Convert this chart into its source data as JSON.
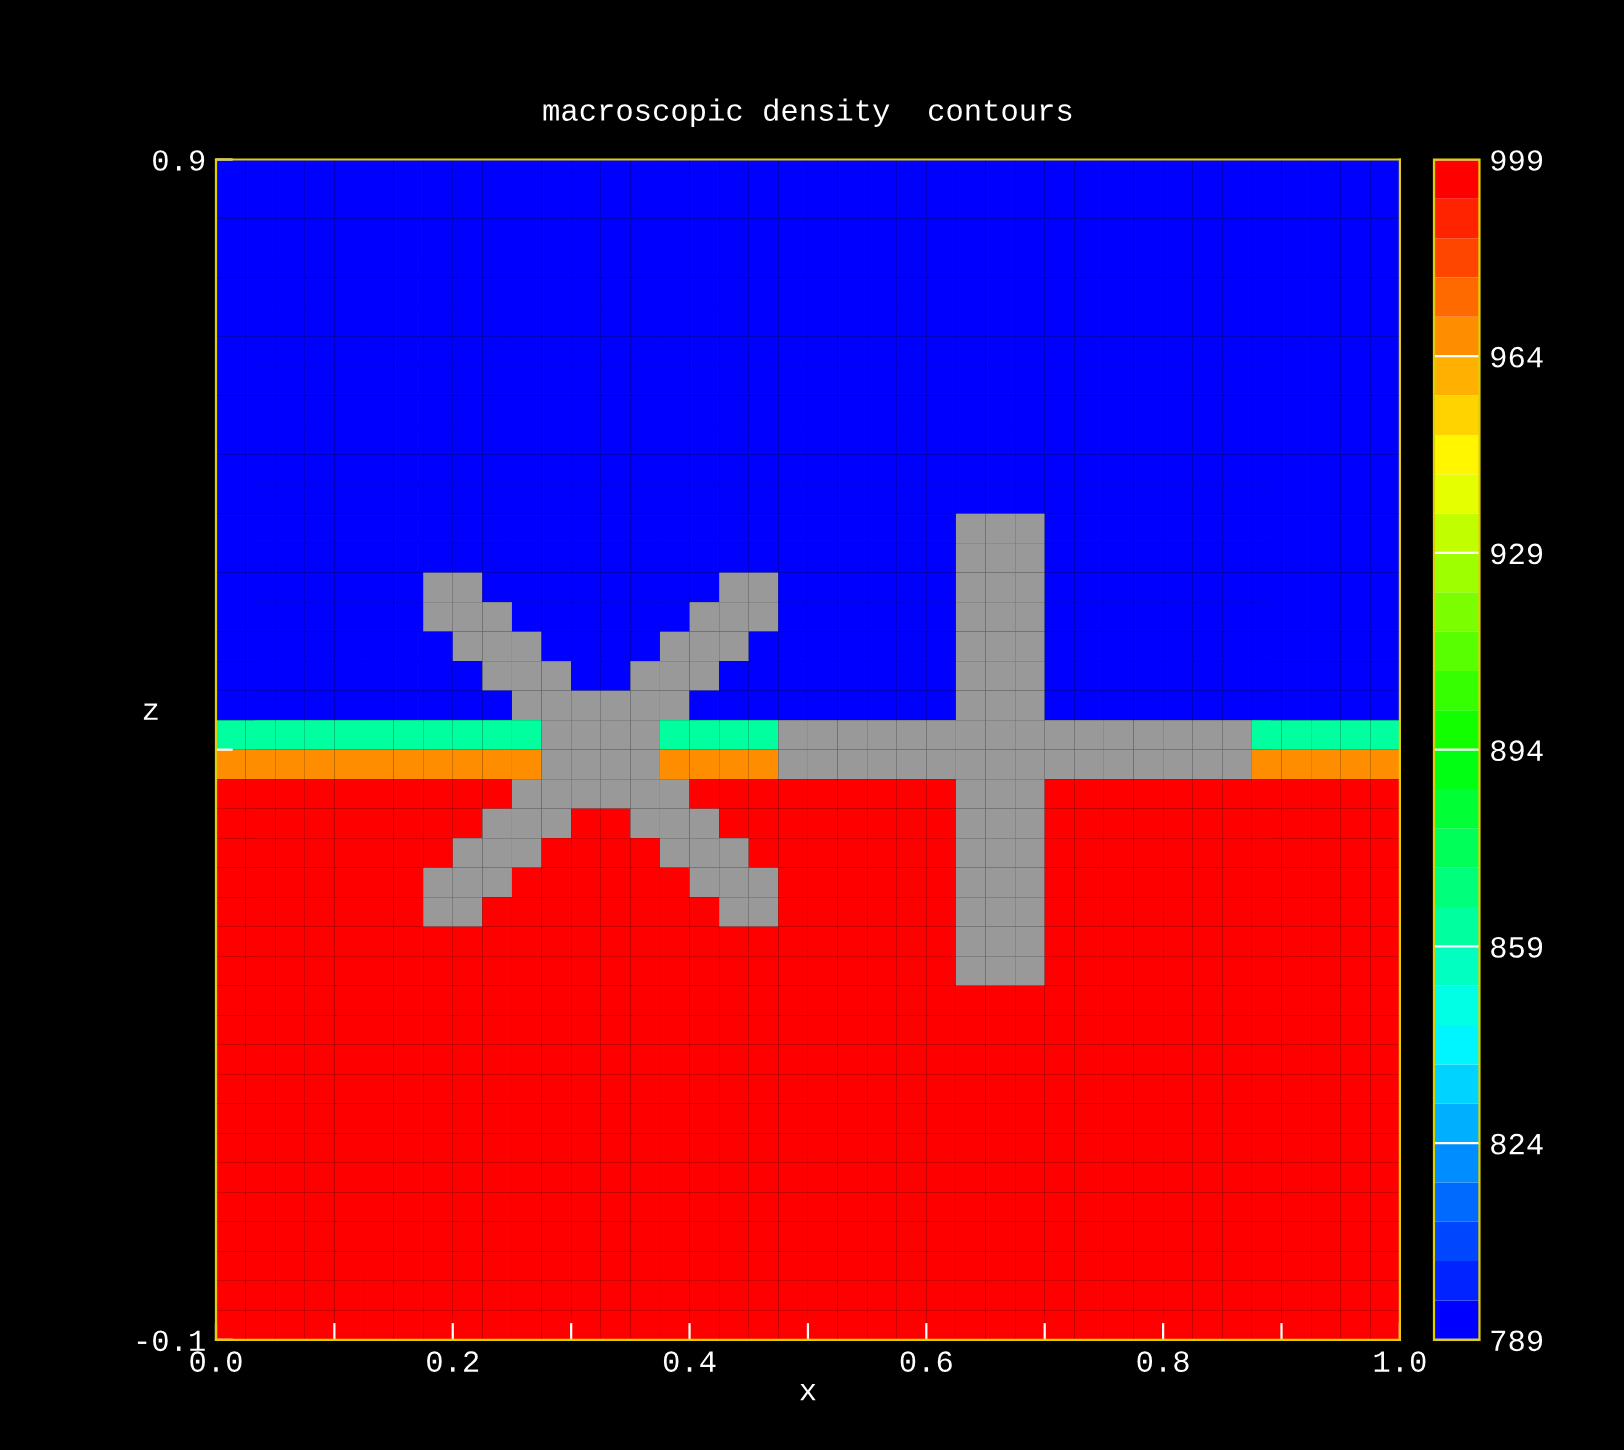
{
  "chart_data": {
    "type": "heatmap",
    "title": "macroscopic density  contours",
    "xlabel": "x",
    "ylabel": "z",
    "xlim": [
      0,
      1
    ],
    "ylim": [
      -0.1,
      0.9
    ],
    "xticks": [
      {
        "value": 0,
        "label": "0.0"
      },
      {
        "value": 0.1,
        "label": null
      },
      0.2,
      {
        "value": 0.3,
        "label": null
      },
      0.4,
      {
        "value": 0.5,
        "label": null
      },
      0.6,
      {
        "value": 0.7,
        "label": null
      },
      0.8,
      {
        "value": 0.9,
        "label": null
      },
      {
        "value": 1.0,
        "label": "1.0"
      }
    ],
    "yticks": [
      -0.1,
      {
        "value": 0.4,
        "label": null
      },
      0.9
    ],
    "clim": [
      789,
      999
    ],
    "cticks": [
      789,
      824,
      859,
      894,
      929,
      964,
      999
    ],
    "cells": [
      [
        789,
        789,
        789,
        789,
        789,
        789,
        789,
        789,
        789,
        789,
        789,
        789,
        789,
        789,
        789,
        789,
        789,
        789,
        789,
        789,
        789,
        789,
        789,
        789,
        789,
        789,
        789,
        789,
        789,
        789,
        789,
        789,
        789,
        789,
        789,
        789,
        789,
        789,
        789,
        789
      ],
      [
        789,
        789,
        789,
        789,
        789,
        789,
        789,
        789,
        789,
        789,
        789,
        789,
        789,
        789,
        789,
        789,
        789,
        789,
        789,
        789,
        789,
        789,
        789,
        789,
        789,
        789,
        789,
        789,
        789,
        789,
        789,
        789,
        789,
        789,
        789,
        789,
        789,
        789,
        789,
        789
      ],
      [
        789,
        789,
        789,
        789,
        789,
        789,
        789,
        789,
        789,
        789,
        789,
        789,
        789,
        789,
        789,
        789,
        789,
        789,
        789,
        789,
        789,
        789,
        789,
        789,
        789,
        789,
        789,
        789,
        789,
        789,
        789,
        789,
        789,
        789,
        789,
        789,
        789,
        789,
        789,
        789
      ],
      [
        789,
        789,
        789,
        789,
        789,
        789,
        789,
        789,
        789,
        789,
        789,
        789,
        789,
        789,
        789,
        789,
        789,
        789,
        789,
        789,
        789,
        789,
        789,
        789,
        789,
        789,
        789,
        789,
        789,
        789,
        789,
        789,
        789,
        789,
        789,
        789,
        789,
        789,
        789,
        789
      ],
      [
        789,
        789,
        789,
        789,
        789,
        789,
        789,
        789,
        789,
        789,
        789,
        789,
        789,
        789,
        789,
        789,
        789,
        789,
        789,
        789,
        789,
        789,
        789,
        789,
        789,
        789,
        789,
        789,
        789,
        789,
        789,
        789,
        789,
        789,
        789,
        789,
        789,
        789,
        789,
        789
      ],
      [
        789,
        789,
        789,
        789,
        789,
        789,
        789,
        789,
        789,
        789,
        789,
        789,
        789,
        789,
        789,
        789,
        789,
        789,
        789,
        789,
        789,
        789,
        789,
        789,
        789,
        789,
        789,
        789,
        789,
        789,
        789,
        789,
        789,
        789,
        789,
        789,
        789,
        789,
        789,
        789
      ],
      [
        789,
        789,
        789,
        789,
        789,
        789,
        789,
        789,
        789,
        789,
        789,
        789,
        789,
        789,
        789,
        789,
        789,
        789,
        789,
        789,
        789,
        789,
        789,
        789,
        789,
        789,
        789,
        789,
        789,
        789,
        789,
        789,
        789,
        789,
        789,
        789,
        789,
        789,
        789,
        789
      ],
      [
        789,
        789,
        789,
        789,
        789,
        789,
        789,
        789,
        789,
        789,
        789,
        789,
        789,
        789,
        789,
        789,
        789,
        789,
        789,
        789,
        789,
        789,
        789,
        789,
        789,
        789,
        789,
        789,
        789,
        789,
        789,
        789,
        789,
        789,
        789,
        789,
        789,
        789,
        789,
        789
      ],
      [
        789,
        789,
        789,
        789,
        789,
        789,
        789,
        789,
        789,
        789,
        789,
        789,
        789,
        789,
        789,
        789,
        789,
        789,
        789,
        789,
        789,
        789,
        789,
        789,
        789,
        789,
        789,
        789,
        789,
        789,
        789,
        789,
        789,
        789,
        789,
        789,
        789,
        789,
        789,
        789
      ],
      [
        789,
        789,
        789,
        789,
        789,
        789,
        789,
        789,
        789,
        789,
        789,
        789,
        789,
        789,
        789,
        789,
        789,
        789,
        789,
        789,
        789,
        789,
        789,
        789,
        789,
        789,
        789,
        789,
        789,
        789,
        789,
        789,
        789,
        789,
        789,
        789,
        789,
        789,
        789,
        789
      ],
      [
        789,
        789,
        789,
        789,
        789,
        789,
        789,
        789,
        789,
        789,
        789,
        789,
        789,
        789,
        789,
        789,
        789,
        789,
        789,
        789,
        789,
        789,
        789,
        789,
        789,
        789,
        789,
        789,
        789,
        789,
        789,
        789,
        789,
        789,
        789,
        789,
        789,
        789,
        789,
        789
      ],
      [
        789,
        789,
        789,
        789,
        789,
        789,
        789,
        789,
        789,
        789,
        789,
        789,
        789,
        789,
        789,
        789,
        789,
        789,
        789,
        789,
        789,
        789,
        789,
        789,
        789,
        789,
        789,
        789,
        789,
        789,
        789,
        789,
        789,
        789,
        789,
        789,
        789,
        789,
        789,
        789
      ],
      [
        789,
        789,
        789,
        789,
        789,
        789,
        789,
        789,
        789,
        789,
        789,
        789,
        789,
        789,
        789,
        789,
        789,
        789,
        789,
        789,
        789,
        789,
        789,
        789,
        789,
        null,
        null,
        null,
        789,
        789,
        789,
        789,
        789,
        789,
        789,
        789,
        789,
        789,
        789,
        789
      ],
      [
        789,
        789,
        789,
        789,
        789,
        789,
        789,
        789,
        789,
        789,
        789,
        789,
        789,
        789,
        789,
        789,
        789,
        789,
        789,
        789,
        789,
        789,
        789,
        789,
        789,
        null,
        null,
        null,
        789,
        789,
        789,
        789,
        789,
        789,
        789,
        789,
        789,
        789,
        789,
        789
      ],
      [
        789,
        789,
        789,
        789,
        789,
        789,
        789,
        null,
        null,
        789,
        789,
        789,
        789,
        789,
        789,
        789,
        789,
        null,
        null,
        789,
        789,
        789,
        789,
        789,
        789,
        null,
        null,
        null,
        789,
        789,
        789,
        789,
        789,
        789,
        789,
        789,
        789,
        789,
        789,
        789
      ],
      [
        789,
        789,
        789,
        789,
        789,
        789,
        789,
        null,
        null,
        null,
        789,
        789,
        789,
        789,
        789,
        789,
        null,
        null,
        null,
        789,
        789,
        789,
        789,
        789,
        789,
        null,
        null,
        null,
        789,
        789,
        789,
        789,
        789,
        789,
        789,
        789,
        789,
        789,
        789,
        789
      ],
      [
        789,
        789,
        789,
        789,
        789,
        789,
        789,
        789,
        null,
        null,
        null,
        789,
        789,
        789,
        789,
        null,
        null,
        null,
        789,
        789,
        789,
        789,
        789,
        789,
        789,
        null,
        null,
        null,
        789,
        789,
        789,
        789,
        789,
        789,
        789,
        789,
        789,
        789,
        789,
        789
      ],
      [
        789,
        789,
        789,
        789,
        789,
        789,
        789,
        789,
        789,
        null,
        null,
        null,
        789,
        789,
        null,
        null,
        null,
        789,
        789,
        789,
        789,
        789,
        789,
        789,
        789,
        null,
        null,
        null,
        789,
        789,
        789,
        789,
        789,
        789,
        789,
        789,
        789,
        789,
        789,
        789
      ],
      [
        789,
        789,
        789,
        789,
        789,
        789,
        789,
        789,
        789,
        789,
        null,
        null,
        null,
        null,
        null,
        null,
        789,
        789,
        789,
        789,
        789,
        789,
        789,
        789,
        789,
        null,
        null,
        null,
        789,
        789,
        789,
        789,
        789,
        789,
        789,
        789,
        789,
        789,
        789,
        789
      ],
      [
        859,
        859,
        859,
        859,
        859,
        859,
        859,
        859,
        859,
        859,
        859,
        null,
        null,
        null,
        null,
        859,
        859,
        859,
        859,
        null,
        null,
        null,
        null,
        null,
        null,
        null,
        null,
        null,
        null,
        null,
        null,
        null,
        null,
        null,
        null,
        859,
        859,
        859,
        859,
        859
      ],
      [
        964,
        964,
        964,
        964,
        964,
        964,
        964,
        964,
        964,
        964,
        964,
        null,
        null,
        null,
        null,
        964,
        964,
        964,
        964,
        null,
        null,
        null,
        null,
        null,
        null,
        null,
        null,
        null,
        null,
        null,
        null,
        null,
        null,
        null,
        null,
        964,
        964,
        964,
        964,
        964
      ],
      [
        999,
        999,
        999,
        999,
        999,
        999,
        999,
        999,
        999,
        999,
        null,
        null,
        null,
        null,
        null,
        null,
        999,
        999,
        999,
        999,
        999,
        999,
        999,
        999,
        999,
        null,
        null,
        null,
        999,
        999,
        999,
        999,
        999,
        999,
        999,
        999,
        999,
        999,
        999,
        999
      ],
      [
        999,
        999,
        999,
        999,
        999,
        999,
        999,
        999,
        999,
        null,
        null,
        null,
        999,
        999,
        null,
        null,
        null,
        999,
        999,
        999,
        999,
        999,
        999,
        999,
        999,
        null,
        null,
        null,
        999,
        999,
        999,
        999,
        999,
        999,
        999,
        999,
        999,
        999,
        999,
        999
      ],
      [
        999,
        999,
        999,
        999,
        999,
        999,
        999,
        999,
        null,
        null,
        null,
        999,
        999,
        999,
        999,
        null,
        null,
        null,
        999,
        999,
        999,
        999,
        999,
        999,
        999,
        null,
        null,
        null,
        999,
        999,
        999,
        999,
        999,
        999,
        999,
        999,
        999,
        999,
        999,
        999
      ],
      [
        999,
        999,
        999,
        999,
        999,
        999,
        999,
        null,
        null,
        null,
        999,
        999,
        999,
        999,
        999,
        999,
        null,
        null,
        null,
        999,
        999,
        999,
        999,
        999,
        999,
        null,
        null,
        null,
        999,
        999,
        999,
        999,
        999,
        999,
        999,
        999,
        999,
        999,
        999,
        999
      ],
      [
        999,
        999,
        999,
        999,
        999,
        999,
        999,
        null,
        null,
        999,
        999,
        999,
        999,
        999,
        999,
        999,
        999,
        null,
        null,
        999,
        999,
        999,
        999,
        999,
        999,
        null,
        null,
        null,
        999,
        999,
        999,
        999,
        999,
        999,
        999,
        999,
        999,
        999,
        999,
        999
      ],
      [
        999,
        999,
        999,
        999,
        999,
        999,
        999,
        999,
        999,
        999,
        999,
        999,
        999,
        999,
        999,
        999,
        999,
        999,
        999,
        999,
        999,
        999,
        999,
        999,
        999,
        null,
        null,
        null,
        999,
        999,
        999,
        999,
        999,
        999,
        999,
        999,
        999,
        999,
        999,
        999
      ],
      [
        999,
        999,
        999,
        999,
        999,
        999,
        999,
        999,
        999,
        999,
        999,
        999,
        999,
        999,
        999,
        999,
        999,
        999,
        999,
        999,
        999,
        999,
        999,
        999,
        999,
        null,
        null,
        null,
        999,
        999,
        999,
        999,
        999,
        999,
        999,
        999,
        999,
        999,
        999,
        999
      ],
      [
        999,
        999,
        999,
        999,
        999,
        999,
        999,
        999,
        999,
        999,
        999,
        999,
        999,
        999,
        999,
        999,
        999,
        999,
        999,
        999,
        999,
        999,
        999,
        999,
        999,
        999,
        999,
        999,
        999,
        999,
        999,
        999,
        999,
        999,
        999,
        999,
        999,
        999,
        999,
        999
      ],
      [
        999,
        999,
        999,
        999,
        999,
        999,
        999,
        999,
        999,
        999,
        999,
        999,
        999,
        999,
        999,
        999,
        999,
        999,
        999,
        999,
        999,
        999,
        999,
        999,
        999,
        999,
        999,
        999,
        999,
        999,
        999,
        999,
        999,
        999,
        999,
        999,
        999,
        999,
        999,
        999
      ],
      [
        999,
        999,
        999,
        999,
        999,
        999,
        999,
        999,
        999,
        999,
        999,
        999,
        999,
        999,
        999,
        999,
        999,
        999,
        999,
        999,
        999,
        999,
        999,
        999,
        999,
        999,
        999,
        999,
        999,
        999,
        999,
        999,
        999,
        999,
        999,
        999,
        999,
        999,
        999,
        999
      ],
      [
        999,
        999,
        999,
        999,
        999,
        999,
        999,
        999,
        999,
        999,
        999,
        999,
        999,
        999,
        999,
        999,
        999,
        999,
        999,
        999,
        999,
        999,
        999,
        999,
        999,
        999,
        999,
        999,
        999,
        999,
        999,
        999,
        999,
        999,
        999,
        999,
        999,
        999,
        999,
        999
      ],
      [
        999,
        999,
        999,
        999,
        999,
        999,
        999,
        999,
        999,
        999,
        999,
        999,
        999,
        999,
        999,
        999,
        999,
        999,
        999,
        999,
        999,
        999,
        999,
        999,
        999,
        999,
        999,
        999,
        999,
        999,
        999,
        999,
        999,
        999,
        999,
        999,
        999,
        999,
        999,
        999
      ],
      [
        999,
        999,
        999,
        999,
        999,
        999,
        999,
        999,
        999,
        999,
        999,
        999,
        999,
        999,
        999,
        999,
        999,
        999,
        999,
        999,
        999,
        999,
        999,
        999,
        999,
        999,
        999,
        999,
        999,
        999,
        999,
        999,
        999,
        999,
        999,
        999,
        999,
        999,
        999,
        999
      ],
      [
        999,
        999,
        999,
        999,
        999,
        999,
        999,
        999,
        999,
        999,
        999,
        999,
        999,
        999,
        999,
        999,
        999,
        999,
        999,
        999,
        999,
        999,
        999,
        999,
        999,
        999,
        999,
        999,
        999,
        999,
        999,
        999,
        999,
        999,
        999,
        999,
        999,
        999,
        999,
        999
      ],
      [
        999,
        999,
        999,
        999,
        999,
        999,
        999,
        999,
        999,
        999,
        999,
        999,
        999,
        999,
        999,
        999,
        999,
        999,
        999,
        999,
        999,
        999,
        999,
        999,
        999,
        999,
        999,
        999,
        999,
        999,
        999,
        999,
        999,
        999,
        999,
        999,
        999,
        999,
        999,
        999
      ],
      [
        999,
        999,
        999,
        999,
        999,
        999,
        999,
        999,
        999,
        999,
        999,
        999,
        999,
        999,
        999,
        999,
        999,
        999,
        999,
        999,
        999,
        999,
        999,
        999,
        999,
        999,
        999,
        999,
        999,
        999,
        999,
        999,
        999,
        999,
        999,
        999,
        999,
        999,
        999,
        999
      ],
      [
        999,
        999,
        999,
        999,
        999,
        999,
        999,
        999,
        999,
        999,
        999,
        999,
        999,
        999,
        999,
        999,
        999,
        999,
        999,
        999,
        999,
        999,
        999,
        999,
        999,
        999,
        999,
        999,
        999,
        999,
        999,
        999,
        999,
        999,
        999,
        999,
        999,
        999,
        999,
        999
      ],
      [
        999,
        999,
        999,
        999,
        999,
        999,
        999,
        999,
        999,
        999,
        999,
        999,
        999,
        999,
        999,
        999,
        999,
        999,
        999,
        999,
        999,
        999,
        999,
        999,
        999,
        999,
        999,
        999,
        999,
        999,
        999,
        999,
        999,
        999,
        999,
        999,
        999,
        999,
        999,
        999
      ],
      [
        999,
        999,
        999,
        999,
        999,
        999,
        999,
        999,
        999,
        999,
        999,
        999,
        999,
        999,
        999,
        999,
        999,
        999,
        999,
        999,
        999,
        999,
        999,
        999,
        999,
        999,
        999,
        999,
        999,
        999,
        999,
        999,
        999,
        999,
        999,
        999,
        999,
        999,
        999,
        999
      ]
    ]
  }
}
